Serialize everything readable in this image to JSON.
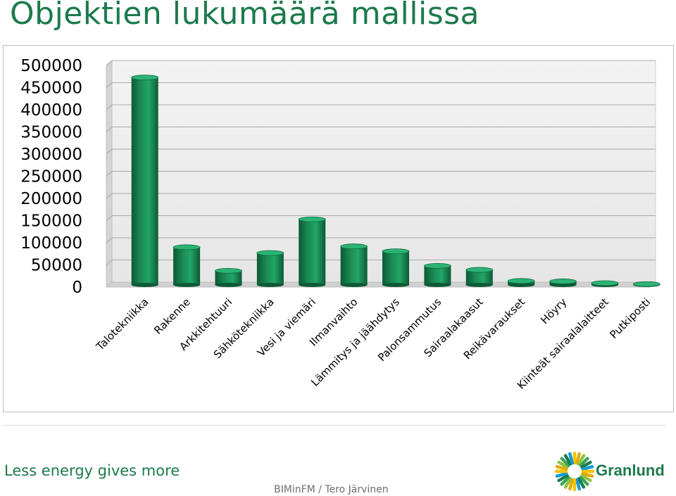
{
  "page": {
    "title": "Objektien lukumäärä mallissa",
    "tagline": "Less energy gives more",
    "author": "BIMinFM / Tero Järvinen",
    "logo_text": "Granlund",
    "logo_icon": "granlund-sun-logo-icon",
    "accent_color": "#1c7a4c"
  },
  "chart_data": {
    "type": "bar",
    "title": "",
    "xlabel": "",
    "ylabel": "",
    "ylim": [
      0,
      500000
    ],
    "yticks": [
      "0",
      "50000",
      "100000",
      "150000",
      "200000",
      "250000",
      "300000",
      "350000",
      "400000",
      "450000",
      "500000"
    ],
    "grid": true,
    "legend": "none",
    "bar_color": "#1a8a54",
    "categories": [
      "Talotekniikka",
      "Rakenne",
      "Arkkitehtuuri",
      "Sähkötekniikka",
      "Vesi ja viemäri",
      "Ilmanvaihto",
      "Lämmitys ja jäähdytys",
      "Palonsammutus",
      "Sairaalakaasut",
      "Reikävaraukset",
      "Höyry",
      "Kiinteät sairaalalaitteet",
      "Putkiposti"
    ],
    "values": [
      468000,
      85000,
      32000,
      72000,
      148000,
      87000,
      76000,
      43000,
      34000,
      9000,
      8000,
      4000,
      2000
    ]
  }
}
